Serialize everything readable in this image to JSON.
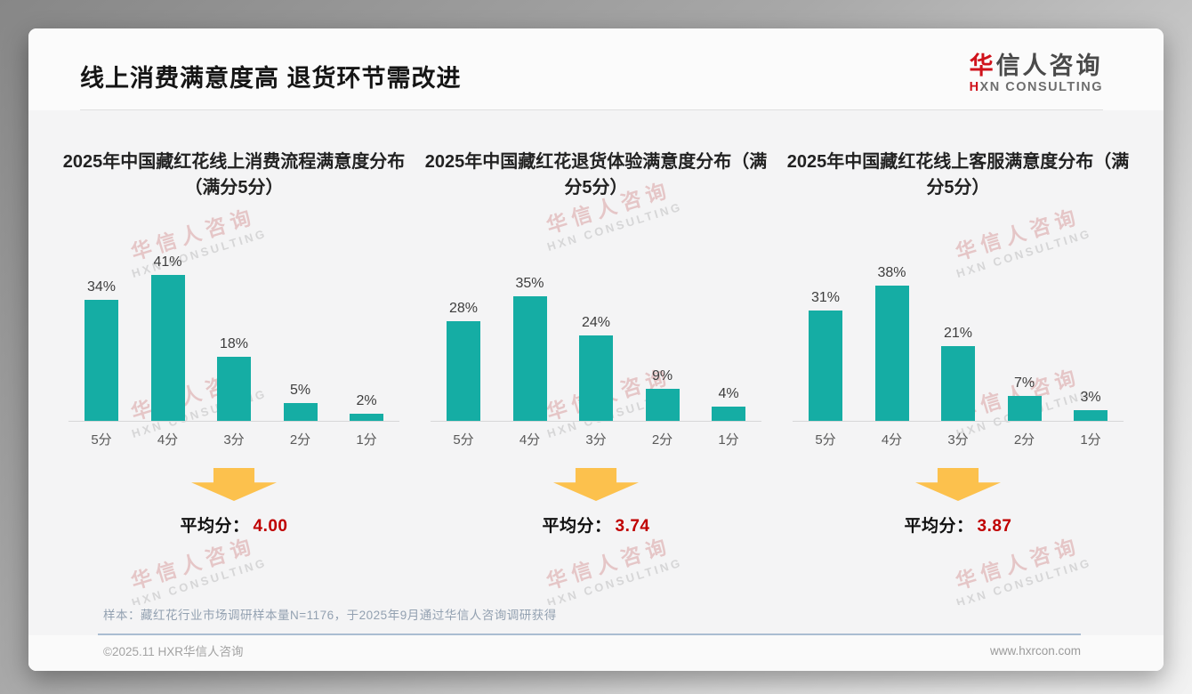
{
  "slide": {
    "title": "线上消费满意度高 退货环节需改进",
    "logo": {
      "cn_red": "华",
      "cn_rest": "信人咨询",
      "en_red": "H",
      "en_rest": "XN CONSULTING"
    },
    "watermark": {
      "line1": "华信人咨询",
      "line2": "HXN CONSULTING"
    },
    "average_label": "平均分：",
    "footnote": "样本：藏红花行业市场调研样本量N=1176，于2025年9月通过华信人咨询调研获得",
    "copyright": "©2025.11 HXR华信人咨询",
    "website": "www.hxrcon.com"
  },
  "colors": {
    "bar": "#15ada4",
    "accent_red": "#c00000",
    "arrow_yellow": "#fcc14d",
    "logo_red": "#d0121b"
  },
  "chart_data": [
    {
      "type": "bar",
      "title": "2025年中国藏红花线上消费流程满意度分布（满分5分）",
      "categories": [
        "5分",
        "4分",
        "3分",
        "2分",
        "1分"
      ],
      "values": [
        34,
        41,
        18,
        5,
        2
      ],
      "unit": "%",
      "ylim": [
        0,
        45
      ],
      "average": "4.00"
    },
    {
      "type": "bar",
      "title": "2025年中国藏红花退货体验满意度分布（满分5分）",
      "categories": [
        "5分",
        "4分",
        "3分",
        "2分",
        "1分"
      ],
      "values": [
        28,
        35,
        24,
        9,
        4
      ],
      "unit": "%",
      "ylim": [
        0,
        45
      ],
      "average": "3.74"
    },
    {
      "type": "bar",
      "title": "2025年中国藏红花线上客服满意度分布（满分5分）",
      "categories": [
        "5分",
        "4分",
        "3分",
        "2分",
        "1分"
      ],
      "values": [
        31,
        38,
        21,
        7,
        3
      ],
      "unit": "%",
      "ylim": [
        0,
        45
      ],
      "average": "3.87"
    }
  ]
}
